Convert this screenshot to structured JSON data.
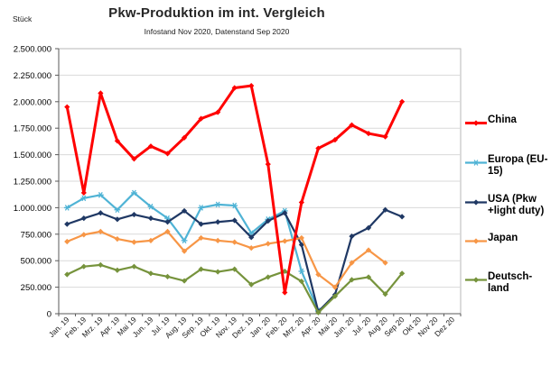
{
  "header": {
    "unit_label": "Stück",
    "title": "Pkw-Produktion im int. Vergleich",
    "subtitle": "Infostand Nov 2020, Datenstand Sep 2020"
  },
  "chart_data": {
    "type": "line",
    "title": "Pkw-Produktion im int. Vergleich",
    "subtitle": "Infostand Nov 2020, Datenstand Sep 2020",
    "ylabel": "Stück",
    "ylim": [
      0,
      2500000
    ],
    "ytick_step": 250000,
    "grid": "horizontal",
    "legend_position": "right",
    "categories": [
      "Jan. 19",
      "Feb. 19",
      "Mrz. 19",
      "Apr. 19",
      "Mai 19",
      "Jun. 19",
      "Jul. 19",
      "Aug. 19",
      "Sep. 19",
      "Okt. 19",
      "Nov. 19",
      "Dez. 19",
      "Jan. 20",
      "Feb. 20",
      "Mrz. 20",
      "Apr. 20",
      "Mai 20",
      "Jun. 20",
      "Jul. 20",
      "Aug 20",
      "Sep 20",
      "Okt 20",
      "Nov 20",
      "Dez 20"
    ],
    "series": [
      {
        "name": "China",
        "color": "#FF0000",
        "marker": "diamond",
        "line_width": 3,
        "z_order": 5,
        "values": [
          1950000,
          1140000,
          2080000,
          1630000,
          1460000,
          1580000,
          1510000,
          1660000,
          1840000,
          1900000,
          2130000,
          2150000,
          1410000,
          200000,
          1050000,
          1560000,
          1640000,
          1780000,
          1700000,
          1670000,
          2000000
        ]
      },
      {
        "name": "Europa (EU-15)",
        "color": "#4FB3D5",
        "marker": "asterisk",
        "line_width": 2.2,
        "z_order": 1,
        "values": [
          1000000,
          1090000,
          1120000,
          980000,
          1140000,
          1010000,
          900000,
          690000,
          1000000,
          1030000,
          1020000,
          760000,
          890000,
          970000,
          400000,
          30000
        ]
      },
      {
        "name": "USA (Pkw +light duty)",
        "color": "#1F3864",
        "marker": "diamond",
        "line_width": 2.2,
        "z_order": 2,
        "values": [
          845000,
          900000,
          950000,
          890000,
          935000,
          900000,
          865000,
          970000,
          845000,
          865000,
          880000,
          720000,
          875000,
          950000,
          650000,
          20000,
          180000,
          730000,
          810000,
          980000,
          915000
        ]
      },
      {
        "name": "Japan",
        "color": "#F79646",
        "marker": "diamond",
        "line_width": 2.2,
        "z_order": 3,
        "values": [
          680000,
          745000,
          775000,
          705000,
          675000,
          690000,
          775000,
          590000,
          715000,
          690000,
          675000,
          620000,
          660000,
          685000,
          715000,
          370000,
          250000,
          480000,
          600000,
          480000
        ]
      },
      {
        "name": "Deutsch-land",
        "color": "#76933C",
        "marker": "diamond",
        "line_width": 2.2,
        "z_order": 4,
        "values": [
          370000,
          445000,
          460000,
          410000,
          445000,
          380000,
          350000,
          310000,
          420000,
          395000,
          420000,
          275000,
          345000,
          400000,
          305000,
          10000,
          165000,
          320000,
          345000,
          185000,
          380000
        ]
      }
    ]
  }
}
